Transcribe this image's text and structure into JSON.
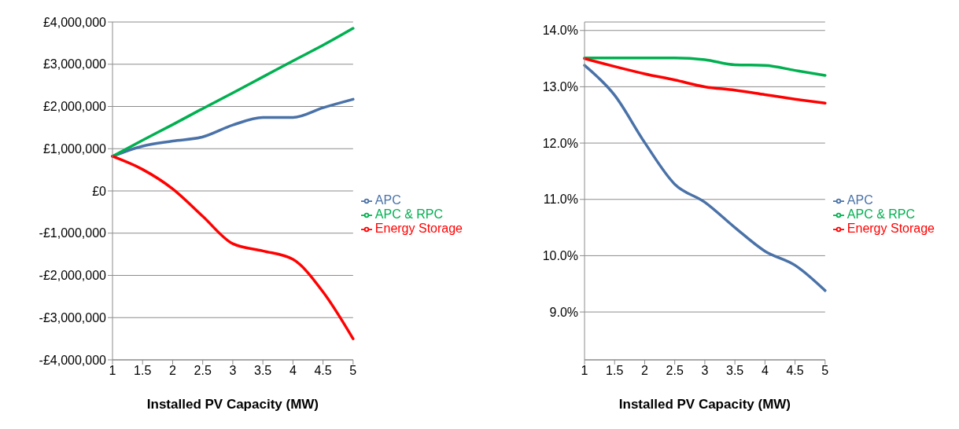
{
  "chart_data": [
    {
      "type": "line",
      "xlabel": "Installed PV Capacity (MW)",
      "categories": [
        "1",
        "1.5",
        "2",
        "2.5",
        "3",
        "3.5",
        "4",
        "4.5",
        "5"
      ],
      "series": [
        {
          "name": "APC",
          "color": "#4a72a8",
          "values": [
            820000,
            1060000,
            1180000,
            1280000,
            1560000,
            1740000,
            1740000,
            1970000,
            2170000
          ]
        },
        {
          "name": "APC & RPC",
          "color": "#00b050",
          "values": [
            820000,
            1200000,
            1570000,
            1950000,
            2320000,
            2700000,
            3080000,
            3450000,
            3850000
          ]
        },
        {
          "name": "Energy Storage",
          "color": "#ff0000",
          "values": [
            820000,
            510000,
            50000,
            -600000,
            -1250000,
            -1420000,
            -1620000,
            -2390000,
            -3500000
          ]
        }
      ],
      "ylim": [
        -4000000,
        4000000
      ],
      "yticks": [
        {
          "value": -4000000,
          "label": "-£4,000,000"
        },
        {
          "value": -3000000,
          "label": "-£3,000,000"
        },
        {
          "value": -2000000,
          "label": "-£2,000,000"
        },
        {
          "value": -1000000,
          "label": "-£1,000,000"
        },
        {
          "value": 0,
          "label": "£0"
        },
        {
          "value": 1000000,
          "label": "£1,000,000"
        },
        {
          "value": 2000000,
          "label": "£2,000,000"
        },
        {
          "value": 3000000,
          "label": "£3,000,000"
        },
        {
          "value": 4000000,
          "label": "£4,000,000"
        }
      ],
      "grid": "y",
      "legend": "right",
      "marker": "none",
      "line_style": "solid"
    },
    {
      "type": "line",
      "xlabel": "Installed PV Capacity (MW)",
      "categories": [
        "1",
        "1.5",
        "2",
        "2.5",
        "3",
        "3.5",
        "4",
        "4.5",
        "5"
      ],
      "series": [
        {
          "name": "APC",
          "color": "#4a72a8",
          "values": [
            13.38,
            12.85,
            12.01,
            11.27,
            10.95,
            10.5,
            10.08,
            9.83,
            9.38
          ]
        },
        {
          "name": "APC & RPC",
          "color": "#00b050",
          "values": [
            13.51,
            13.51,
            13.51,
            13.51,
            13.48,
            13.39,
            13.38,
            13.29,
            13.2
          ]
        },
        {
          "name": "Energy Storage",
          "color": "#ff0000",
          "values": [
            13.5,
            13.36,
            13.23,
            13.12,
            13.0,
            12.94,
            12.86,
            12.78,
            12.71
          ]
        }
      ],
      "ylim": [
        8.15,
        14.15
      ],
      "yticks": [
        {
          "value": 9,
          "label": "9.0%"
        },
        {
          "value": 10,
          "label": "10.0%"
        },
        {
          "value": 11,
          "label": "11.0%"
        },
        {
          "value": 12,
          "label": "12.0%"
        },
        {
          "value": 13,
          "label": "13.0%"
        },
        {
          "value": 14,
          "label": "14.0%"
        }
      ],
      "grid": "y",
      "legend": "right",
      "marker": "none",
      "line_style": "solid"
    }
  ]
}
